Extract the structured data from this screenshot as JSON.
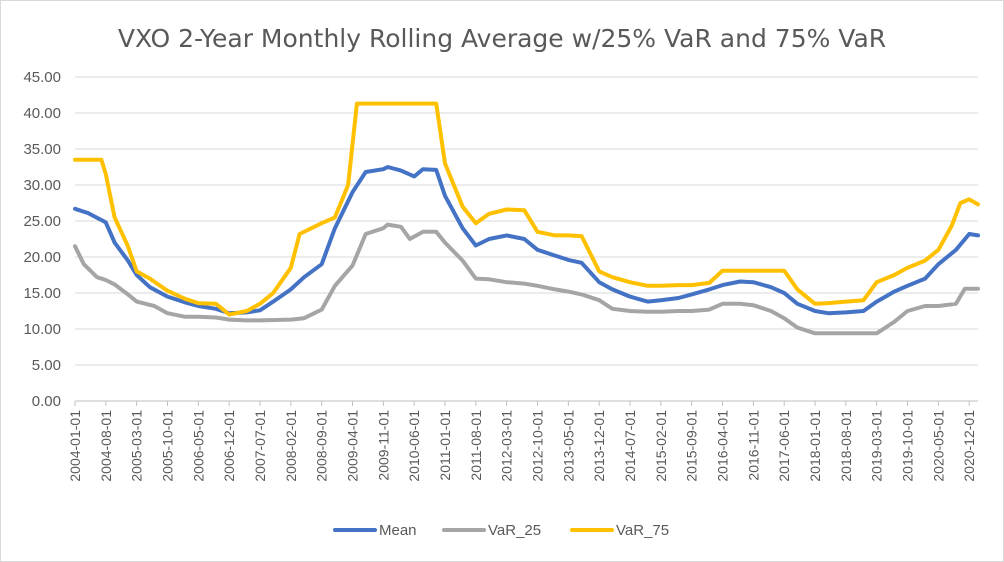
{
  "chart_data": {
    "type": "line",
    "title": "VXO 2-Year Monthly Rolling Average w/25% VaR and 75% VaR",
    "xlabel": "",
    "ylabel": "",
    "ylim": [
      0,
      45
    ],
    "y_ticks": [
      "0.00",
      "5.00",
      "10.00",
      "15.00",
      "20.00",
      "25.00",
      "30.00",
      "35.00",
      "40.00",
      "45.00"
    ],
    "x_range": [
      "2004-01-01",
      "2021-02-01"
    ],
    "x_ticks": [
      "2004-01-01",
      "2004-08-01",
      "2005-03-01",
      "2005-10-01",
      "2006-05-01",
      "2006-12-01",
      "2007-07-01",
      "2008-02-01",
      "2008-09-01",
      "2009-04-01",
      "2009-11-01",
      "2010-06-01",
      "2011-01-01",
      "2011-08-01",
      "2012-03-01",
      "2012-10-01",
      "2013-05-01",
      "2013-12-01",
      "2014-07-01",
      "2015-02-01",
      "2015-09-01",
      "2016-04-01",
      "2016-11-01",
      "2017-06-01",
      "2018-01-01",
      "2018-08-01",
      "2019-03-01",
      "2019-10-01",
      "2020-05-01",
      "2020-12-01"
    ],
    "grid": true,
    "legend_position": "bottom",
    "series": [
      {
        "name": "Mean",
        "color": "#4472c4",
        "points": [
          [
            "2004-01-01",
            26.7
          ],
          [
            "2004-04-01",
            26.1
          ],
          [
            "2004-08-01",
            24.8
          ],
          [
            "2004-10-01",
            22.0
          ],
          [
            "2005-01-01",
            19.5
          ],
          [
            "2005-03-01",
            17.5
          ],
          [
            "2005-06-01",
            15.8
          ],
          [
            "2005-10-01",
            14.5
          ],
          [
            "2006-02-01",
            13.7
          ],
          [
            "2006-05-01",
            13.2
          ],
          [
            "2006-09-01",
            12.8
          ],
          [
            "2006-12-01",
            12.2
          ],
          [
            "2007-04-01",
            12.3
          ],
          [
            "2007-07-01",
            12.6
          ],
          [
            "2007-10-01",
            13.8
          ],
          [
            "2008-02-01",
            15.5
          ],
          [
            "2008-05-01",
            17.2
          ],
          [
            "2008-09-01",
            19.0
          ],
          [
            "2008-12-01",
            24.0
          ],
          [
            "2009-04-01",
            29.0
          ],
          [
            "2009-07-01",
            31.8
          ],
          [
            "2009-11-01",
            32.2
          ],
          [
            "2009-12-01",
            32.5
          ],
          [
            "2010-03-01",
            32.0
          ],
          [
            "2010-06-01",
            31.2
          ],
          [
            "2010-08-01",
            32.2
          ],
          [
            "2010-11-01",
            32.1
          ],
          [
            "2011-01-01",
            28.5
          ],
          [
            "2011-05-01",
            24.0
          ],
          [
            "2011-08-01",
            21.6
          ],
          [
            "2011-11-01",
            22.5
          ],
          [
            "2012-03-01",
            23.0
          ],
          [
            "2012-07-01",
            22.5
          ],
          [
            "2012-10-01",
            21.0
          ],
          [
            "2013-02-01",
            20.2
          ],
          [
            "2013-05-01",
            19.6
          ],
          [
            "2013-08-01",
            19.2
          ],
          [
            "2013-12-01",
            16.5
          ],
          [
            "2014-03-01",
            15.5
          ],
          [
            "2014-07-01",
            14.5
          ],
          [
            "2014-11-01",
            13.8
          ],
          [
            "2015-02-01",
            14.0
          ],
          [
            "2015-06-01",
            14.3
          ],
          [
            "2015-09-01",
            14.8
          ],
          [
            "2016-01-01",
            15.5
          ],
          [
            "2016-04-01",
            16.1
          ],
          [
            "2016-08-01",
            16.6
          ],
          [
            "2016-11-01",
            16.5
          ],
          [
            "2017-03-01",
            15.8
          ],
          [
            "2017-06-01",
            15.0
          ],
          [
            "2017-09-01",
            13.5
          ],
          [
            "2018-01-01",
            12.5
          ],
          [
            "2018-04-01",
            12.2
          ],
          [
            "2018-08-01",
            12.3
          ],
          [
            "2018-12-01",
            12.5
          ],
          [
            "2019-03-01",
            13.8
          ],
          [
            "2019-07-01",
            15.2
          ],
          [
            "2019-10-01",
            16.0
          ],
          [
            "2020-02-01",
            17.0
          ],
          [
            "2020-05-01",
            19.0
          ],
          [
            "2020-09-01",
            21.0
          ],
          [
            "2020-12-01",
            23.2
          ],
          [
            "2021-02-01",
            23.0
          ]
        ]
      },
      {
        "name": "VaR_25",
        "color": "#a5a5a5",
        "points": [
          [
            "2004-01-01",
            21.5
          ],
          [
            "2004-03-01",
            19.0
          ],
          [
            "2004-06-01",
            17.2
          ],
          [
            "2004-08-01",
            16.8
          ],
          [
            "2004-10-01",
            16.2
          ],
          [
            "2005-01-01",
            14.8
          ],
          [
            "2005-03-01",
            13.8
          ],
          [
            "2005-07-01",
            13.2
          ],
          [
            "2005-10-01",
            12.2
          ],
          [
            "2006-02-01",
            11.7
          ],
          [
            "2006-05-01",
            11.7
          ],
          [
            "2006-09-01",
            11.6
          ],
          [
            "2006-12-01",
            11.3
          ],
          [
            "2007-04-01",
            11.2
          ],
          [
            "2007-07-01",
            11.2
          ],
          [
            "2008-02-01",
            11.3
          ],
          [
            "2008-05-01",
            11.5
          ],
          [
            "2008-09-01",
            12.7
          ],
          [
            "2008-12-01",
            16.0
          ],
          [
            "2009-04-01",
            18.8
          ],
          [
            "2009-07-01",
            23.2
          ],
          [
            "2009-11-01",
            24.0
          ],
          [
            "2009-12-01",
            24.5
          ],
          [
            "2010-03-01",
            24.2
          ],
          [
            "2010-05-01",
            22.5
          ],
          [
            "2010-08-01",
            23.5
          ],
          [
            "2010-11-01",
            23.5
          ],
          [
            "2011-01-01",
            22.0
          ],
          [
            "2011-05-01",
            19.5
          ],
          [
            "2011-08-01",
            17.0
          ],
          [
            "2011-11-01",
            16.9
          ],
          [
            "2012-03-01",
            16.5
          ],
          [
            "2012-07-01",
            16.3
          ],
          [
            "2012-10-01",
            16.0
          ],
          [
            "2013-02-01",
            15.5
          ],
          [
            "2013-05-01",
            15.2
          ],
          [
            "2013-08-01",
            14.8
          ],
          [
            "2013-12-01",
            14.0
          ],
          [
            "2014-03-01",
            12.8
          ],
          [
            "2014-07-01",
            12.5
          ],
          [
            "2014-11-01",
            12.4
          ],
          [
            "2015-02-01",
            12.4
          ],
          [
            "2015-06-01",
            12.5
          ],
          [
            "2015-09-01",
            12.5
          ],
          [
            "2016-01-01",
            12.7
          ],
          [
            "2016-04-01",
            13.5
          ],
          [
            "2016-08-01",
            13.5
          ],
          [
            "2016-11-01",
            13.3
          ],
          [
            "2017-03-01",
            12.5
          ],
          [
            "2017-06-01",
            11.5
          ],
          [
            "2017-09-01",
            10.2
          ],
          [
            "2018-01-01",
            9.4
          ],
          [
            "2018-04-01",
            9.4
          ],
          [
            "2018-08-01",
            9.4
          ],
          [
            "2018-12-01",
            9.4
          ],
          [
            "2019-03-01",
            9.4
          ],
          [
            "2019-07-01",
            11.0
          ],
          [
            "2019-10-01",
            12.5
          ],
          [
            "2020-02-01",
            13.2
          ],
          [
            "2020-05-01",
            13.2
          ],
          [
            "2020-09-01",
            13.5
          ],
          [
            "2020-11-01",
            15.6
          ],
          [
            "2021-02-01",
            15.6
          ]
        ]
      },
      {
        "name": "VaR_75",
        "color": "#ffc000",
        "points": [
          [
            "2004-01-01",
            33.5
          ],
          [
            "2004-07-01",
            33.5
          ],
          [
            "2004-08-01",
            31.5
          ],
          [
            "2004-10-01",
            25.5
          ],
          [
            "2005-01-01",
            21.5
          ],
          [
            "2005-03-01",
            18.0
          ],
          [
            "2005-06-01",
            17.0
          ],
          [
            "2005-10-01",
            15.3
          ],
          [
            "2006-02-01",
            14.2
          ],
          [
            "2006-05-01",
            13.6
          ],
          [
            "2006-09-01",
            13.5
          ],
          [
            "2006-12-01",
            12.0
          ],
          [
            "2007-04-01",
            12.5
          ],
          [
            "2007-07-01",
            13.5
          ],
          [
            "2007-10-01",
            15.0
          ],
          [
            "2008-02-01",
            18.5
          ],
          [
            "2008-04-01",
            23.2
          ],
          [
            "2008-09-01",
            24.7
          ],
          [
            "2008-12-01",
            25.5
          ],
          [
            "2009-03-01",
            30.0
          ],
          [
            "2009-05-01",
            41.3
          ],
          [
            "2009-11-01",
            41.3
          ],
          [
            "2010-06-01",
            41.3
          ],
          [
            "2010-11-01",
            41.3
          ],
          [
            "2011-01-01",
            33.0
          ],
          [
            "2011-05-01",
            27.0
          ],
          [
            "2011-08-01",
            24.7
          ],
          [
            "2011-11-01",
            26.0
          ],
          [
            "2012-03-01",
            26.6
          ],
          [
            "2012-07-01",
            26.5
          ],
          [
            "2012-10-01",
            23.5
          ],
          [
            "2013-02-01",
            23.0
          ],
          [
            "2013-05-01",
            23.0
          ],
          [
            "2013-08-01",
            22.9
          ],
          [
            "2013-12-01",
            18.0
          ],
          [
            "2014-03-01",
            17.2
          ],
          [
            "2014-07-01",
            16.5
          ],
          [
            "2014-11-01",
            16.0
          ],
          [
            "2015-02-01",
            16.0
          ],
          [
            "2015-06-01",
            16.1
          ],
          [
            "2015-09-01",
            16.1
          ],
          [
            "2016-01-01",
            16.4
          ],
          [
            "2016-04-01",
            18.1
          ],
          [
            "2016-08-01",
            18.1
          ],
          [
            "2016-11-01",
            18.1
          ],
          [
            "2017-03-01",
            18.1
          ],
          [
            "2017-06-01",
            18.1
          ],
          [
            "2017-09-01",
            15.5
          ],
          [
            "2018-01-01",
            13.5
          ],
          [
            "2018-04-01",
            13.6
          ],
          [
            "2018-08-01",
            13.8
          ],
          [
            "2018-12-01",
            14.0
          ],
          [
            "2019-03-01",
            16.5
          ],
          [
            "2019-07-01",
            17.5
          ],
          [
            "2019-10-01",
            18.5
          ],
          [
            "2020-02-01",
            19.5
          ],
          [
            "2020-05-01",
            21.0
          ],
          [
            "2020-08-01",
            24.3
          ],
          [
            "2020-10-01",
            27.5
          ],
          [
            "2020-12-01",
            28.0
          ],
          [
            "2021-02-01",
            27.3
          ]
        ]
      }
    ]
  }
}
